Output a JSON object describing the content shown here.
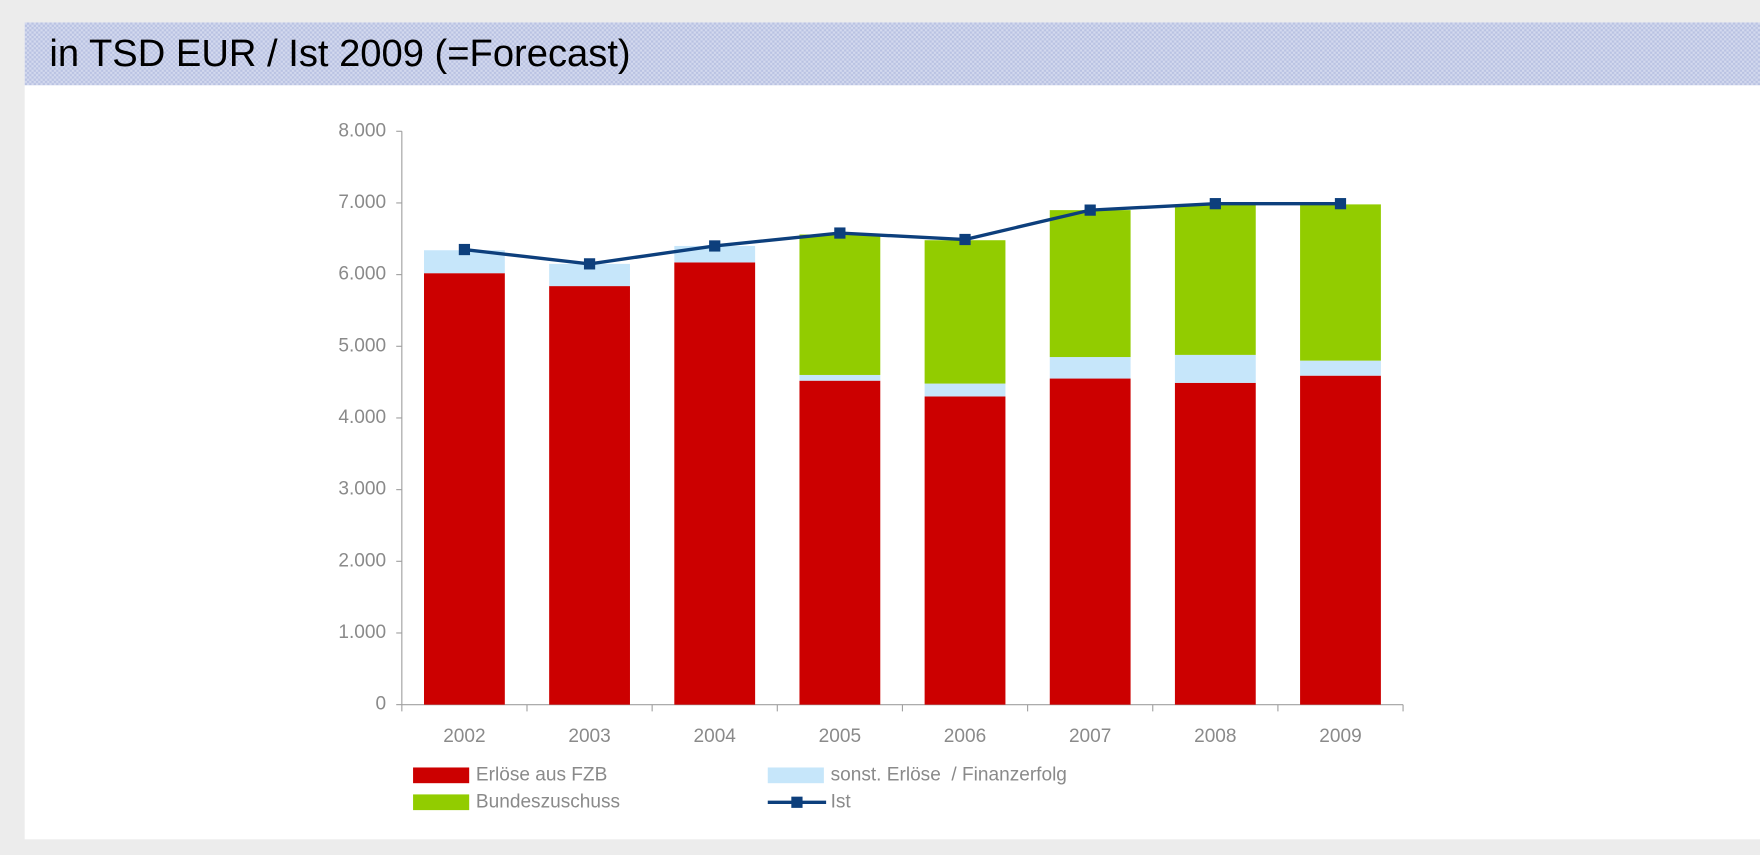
{
  "chart_data": {
    "type": "bar",
    "stacked": true,
    "title": "in TSD EUR / Ist 2009 (=Forecast)",
    "categories": [
      "2002",
      "2003",
      "2004",
      "2005",
      "2006",
      "2007",
      "2008",
      "2009"
    ],
    "series": [
      {
        "name": "Erlöse aus FZB",
        "type": "bar",
        "color": "#cc0000",
        "values": [
          6020,
          5840,
          6170,
          4520,
          4300,
          4550,
          4490,
          4590
        ]
      },
      {
        "name": "sonst. Erlöse  / Finanzerfolg",
        "type": "bar",
        "color": "#c6e6fa",
        "values": [
          320,
          310,
          230,
          80,
          180,
          300,
          390,
          210
        ]
      },
      {
        "name": "Bundeszuschuss",
        "type": "bar",
        "color": "#92cc00",
        "values": [
          null,
          null,
          null,
          1960,
          2000,
          2050,
          2100,
          2180
        ]
      },
      {
        "name": "Ist",
        "type": "line",
        "color": "#0d3f7c",
        "values": [
          6350,
          6150,
          6400,
          6580,
          6490,
          6900,
          6990,
          6990
        ]
      }
    ],
    "ylim": [
      0,
      8000
    ],
    "yticks": [
      0,
      {
        "value": 1000,
        "label": "1.000"
      },
      {
        "value": 2000,
        "label": "2.000"
      },
      {
        "value": 3000,
        "label": "3.000"
      },
      {
        "value": 4000,
        "label": "4.000"
      },
      {
        "value": 5000,
        "label": "5.000"
      },
      {
        "value": 6000,
        "label": "6.000"
      },
      {
        "value": 7000,
        "label": "7.000"
      },
      {
        "value": 8000,
        "label": "8.000"
      }
    ],
    "grid": false
  }
}
